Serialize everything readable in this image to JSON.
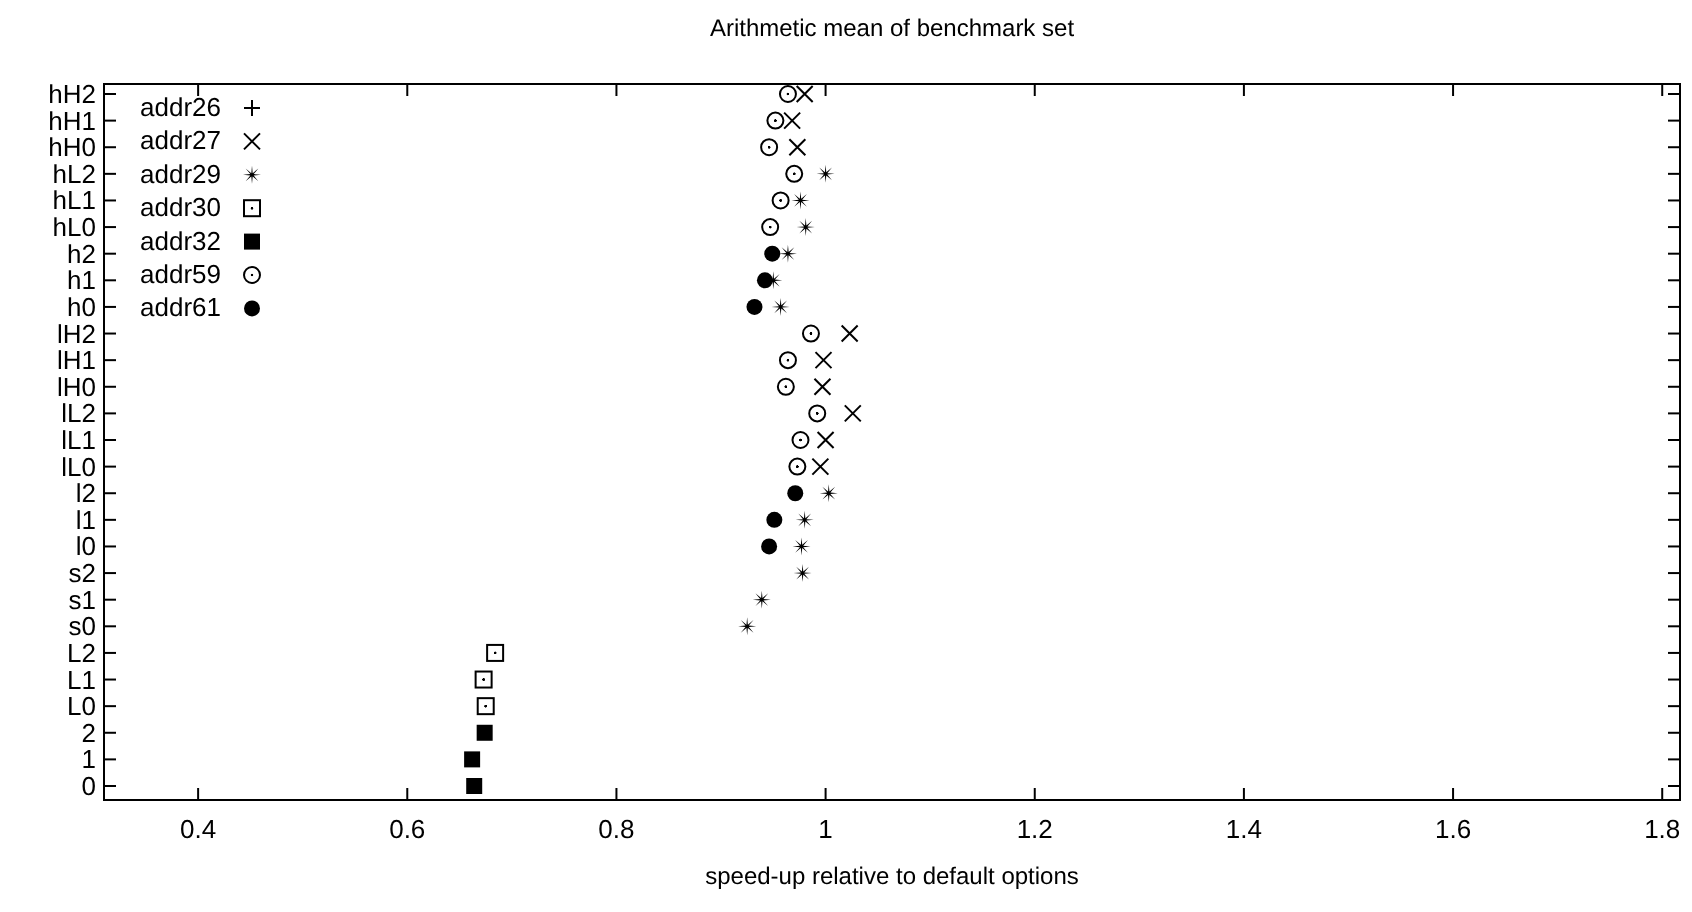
{
  "chart_data": {
    "type": "scatter",
    "title": "Arithmetic mean of benchmark set",
    "xlabel": "speed-up relative to default options",
    "orientation": "horizontal",
    "categories": [
      "hH2",
      "hH1",
      "hH0",
      "hL2",
      "hL1",
      "hL0",
      "h2",
      "h1",
      "h0",
      "lH2",
      "lH1",
      "lH0",
      "lL2",
      "lL1",
      "lL0",
      "l2",
      "l1",
      "l0",
      "s2",
      "s1",
      "s0",
      "L2",
      "L1",
      "L0",
      "2",
      "1",
      "0"
    ],
    "xlim": [
      0.31,
      1.817
    ],
    "xticks": [
      0.4,
      0.6,
      0.8,
      1,
      1.2,
      1.4,
      1.6,
      1.8
    ],
    "grid": false,
    "legend": "top left",
    "series": [
      {
        "name": "addr26",
        "color": "#000000",
        "marker": "plus",
        "values": [
          null,
          null,
          null,
          null,
          null,
          null,
          null,
          null,
          null,
          null,
          null,
          null,
          null,
          null,
          null,
          null,
          null,
          null,
          null,
          null,
          null,
          null,
          null,
          null,
          null,
          null,
          null
        ]
      },
      {
        "name": "addr27",
        "color": "#000000",
        "marker": "cross",
        "values": [
          0.98,
          0.968,
          0.973,
          null,
          null,
          null,
          null,
          null,
          null,
          1.023,
          0.998,
          0.997,
          1.026,
          1.0,
          0.995,
          null,
          null,
          null,
          null,
          null,
          null,
          null,
          null,
          null,
          null,
          null,
          null
        ]
      },
      {
        "name": "addr29",
        "color": "#000000",
        "marker": "star",
        "values": [
          null,
          null,
          null,
          1.0,
          0.976,
          0.981,
          0.964,
          0.95,
          0.957,
          null,
          null,
          null,
          null,
          null,
          null,
          1.003,
          0.98,
          0.977,
          0.978,
          0.939,
          0.925,
          null,
          null,
          null,
          null,
          null,
          null
        ]
      },
      {
        "name": "addr30",
        "color": "#000000",
        "marker": "square-dot",
        "values": [
          null,
          null,
          null,
          null,
          null,
          null,
          null,
          null,
          null,
          null,
          null,
          null,
          null,
          null,
          null,
          null,
          null,
          null,
          null,
          null,
          null,
          0.684,
          0.673,
          0.675,
          null,
          null,
          null
        ]
      },
      {
        "name": "addr32",
        "color": "#000000",
        "marker": "square",
        "values": [
          null,
          null,
          null,
          null,
          null,
          null,
          null,
          null,
          null,
          null,
          null,
          null,
          null,
          null,
          null,
          null,
          null,
          null,
          null,
          null,
          null,
          null,
          null,
          null,
          0.674,
          0.662,
          0.664
        ]
      },
      {
        "name": "addr59",
        "color": "#000000",
        "marker": "circle-dot",
        "values": [
          0.964,
          0.952,
          0.946,
          0.97,
          0.957,
          0.947,
          null,
          null,
          null,
          0.986,
          0.964,
          0.962,
          0.992,
          0.976,
          0.973,
          null,
          null,
          null,
          null,
          null,
          null,
          null,
          null,
          null,
          null,
          null,
          null
        ]
      },
      {
        "name": "addr61",
        "color": "#000000",
        "marker": "circle",
        "values": [
          null,
          null,
          null,
          null,
          null,
          null,
          0.949,
          0.942,
          0.932,
          null,
          null,
          null,
          null,
          null,
          null,
          0.971,
          0.951,
          0.946,
          null,
          null,
          null,
          null,
          null,
          null,
          null,
          null,
          null
        ]
      }
    ]
  }
}
